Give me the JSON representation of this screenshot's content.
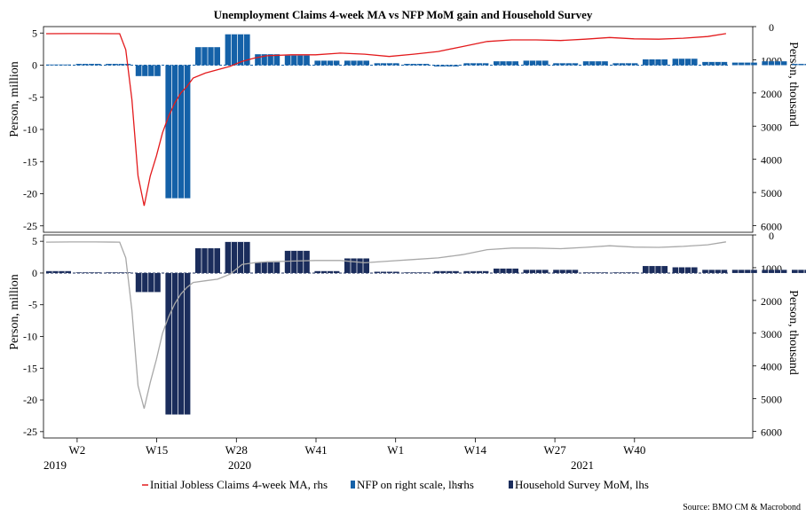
{
  "chart_data": [
    {
      "type": "bar",
      "title": "Unemployment Claims 4-week MA vs NFP MoM gain and Household Survey",
      "ylabel_left": "Person, million",
      "ylabel_right": "Person, thousand",
      "ylim_left": [
        -26,
        6
      ],
      "ylim_right": [
        6200,
        0
      ],
      "yticks_left": [
        "5",
        "0",
        "-5",
        "-10",
        "-15",
        "-20",
        "-25"
      ],
      "yticks_right": [
        "0",
        "1000",
        "2000",
        "3000",
        "4000",
        "5000",
        "6000"
      ],
      "bar_color": "#1461a8",
      "line_color": "#e31a1c",
      "series": [
        {
          "name": "NFP on right scale, lhs",
          "axis": "left",
          "values": [
            0.1,
            0.2,
            0.2,
            -1.7,
            -20.7,
            2.8,
            4.8,
            1.7,
            1.5,
            0.7,
            0.7,
            0.3,
            0.2,
            -0.2,
            0.3,
            0.6,
            0.7,
            0.3,
            0.6,
            0.3,
            0.9,
            1.0,
            0.5,
            0.4,
            0.6,
            0.2,
            0.1
          ]
        },
        {
          "name": "Initial Jobless Claims 4-week MA, rhs",
          "axis": "right",
          "weeks": [
            0,
            4,
            8,
            12,
            13,
            14,
            15,
            16,
            17,
            18,
            19,
            20,
            21,
            22,
            23,
            24,
            26,
            28,
            30,
            32,
            34,
            36,
            40,
            44,
            48,
            52,
            56,
            60,
            64,
            68,
            72,
            76,
            80,
            84,
            88,
            92,
            96,
            100,
            104,
            108,
            111
          ],
          "values": [
            215,
            210,
            210,
            215,
            700,
            2200,
            4500,
            5400,
            4500,
            3900,
            3200,
            2700,
            2300,
            2000,
            1800,
            1550,
            1400,
            1300,
            1200,
            1050,
            950,
            880,
            850,
            850,
            800,
            830,
            900,
            830,
            750,
            600,
            450,
            400,
            400,
            420,
            380,
            330,
            370,
            380,
            350,
            300,
            210
          ]
        }
      ]
    },
    {
      "type": "bar",
      "title": "",
      "ylabel_left": "Person, million",
      "ylabel_right": "Person, thousand",
      "ylim_left": [
        -26,
        6
      ],
      "ylim_right": [
        6200,
        0
      ],
      "yticks_left": [
        "5",
        "0",
        "-5",
        "-10",
        "-15",
        "-20",
        "-25"
      ],
      "yticks_right": [
        "0",
        "1000",
        "2000",
        "3000",
        "4000",
        "5000",
        "6000"
      ],
      "bar_color": "#1b2d5c",
      "line_color": "#a8a8a8",
      "series": [
        {
          "name": "Household Survey MoM, lhs",
          "axis": "left",
          "values": [
            0.3,
            0.1,
            0.1,
            -3.0,
            -22.3,
            3.9,
            4.9,
            1.7,
            3.5,
            0.3,
            2.3,
            0.2,
            0.1,
            0.3,
            0.3,
            0.7,
            0.5,
            0.5,
            0.1,
            0.1,
            1.1,
            0.9,
            0.5,
            0.5,
            0.5,
            0.5,
            1.2
          ]
        },
        {
          "name": "rhs",
          "axis": "right",
          "weeks": [
            0,
            4,
            8,
            12,
            13,
            14,
            15,
            16,
            17,
            18,
            19,
            20,
            21,
            22,
            23,
            24,
            26,
            28,
            30,
            32,
            34,
            36,
            40,
            44,
            48,
            52,
            56,
            60,
            64,
            68,
            72,
            76,
            80,
            84,
            88,
            92,
            96,
            100,
            104,
            108,
            111
          ],
          "values": [
            220,
            215,
            215,
            220,
            700,
            2300,
            4600,
            5300,
            4500,
            3800,
            3000,
            2500,
            2100,
            1800,
            1600,
            1450,
            1400,
            1350,
            1200,
            900,
            850,
            820,
            800,
            780,
            780,
            850,
            800,
            750,
            700,
            600,
            450,
            400,
            400,
            420,
            380,
            330,
            370,
            380,
            350,
            300,
            210
          ]
        }
      ]
    }
  ],
  "x_axis": {
    "week_ticks": [
      "W2",
      "W15",
      "W28",
      "W41",
      "W1",
      "W14",
      "W27",
      "W40"
    ],
    "year_labels": [
      "2019",
      "2020",
      "2021"
    ]
  },
  "legend": [
    {
      "label": "Initial Jobless Claims 4-week MA, rhs",
      "color": "#e31a1c",
      "kind": "line"
    },
    {
      "label": "NFP on right scale, lhs",
      "color": "#1461a8",
      "kind": "bar"
    },
    {
      "label": "rhs",
      "color": "#a8a8a8",
      "kind": "line"
    },
    {
      "label": "Household Survey MoM, lhs",
      "color": "#1b2d5c",
      "kind": "bar"
    }
  ],
  "source": "Source: BMO CM & Macrobond"
}
